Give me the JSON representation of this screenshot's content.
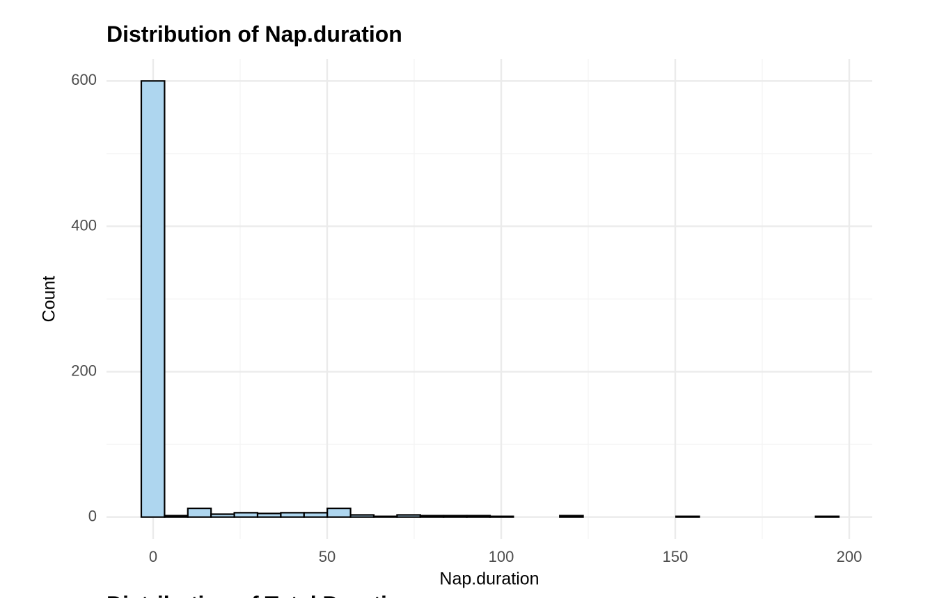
{
  "chart_data": {
    "type": "histogram",
    "title": "Distribution of Nap.duration",
    "x_label": "Nap.duration",
    "y_label": "Count",
    "bins": [
      -3.4,
      3.28,
      9.96,
      16.64,
      23.32,
      30.0,
      36.68,
      43.36,
      50.04,
      56.72,
      63.4,
      70.08,
      76.76,
      83.44,
      90.12,
      96.8,
      103.48,
      110.16,
      116.84,
      123.52,
      130.2,
      136.88,
      143.56,
      150.24,
      156.92,
      163.6,
      170.28,
      176.96,
      183.64,
      190.32,
      197.0
    ],
    "counts": [
      600,
      2,
      12,
      4,
      6,
      5,
      6,
      6,
      12,
      3,
      1,
      3,
      2,
      2,
      2,
      1,
      0,
      0,
      2,
      0,
      0,
      0,
      0,
      1,
      0,
      0,
      0,
      0,
      0,
      1
    ],
    "color": "#aed6ef",
    "edge_color": "#000000",
    "xlim": [
      -13.4,
      206.6
    ],
    "xticks": [
      0,
      50,
      100,
      150,
      200
    ],
    "x_minor_ticks": [
      25,
      75,
      125,
      175
    ],
    "ylim": [
      -30,
      630
    ],
    "yticks": [
      0,
      200,
      400,
      600
    ],
    "y_minor_ticks": [
      100,
      300,
      500
    ],
    "grid": true,
    "next_title": "Distribution of Total Duration"
  }
}
